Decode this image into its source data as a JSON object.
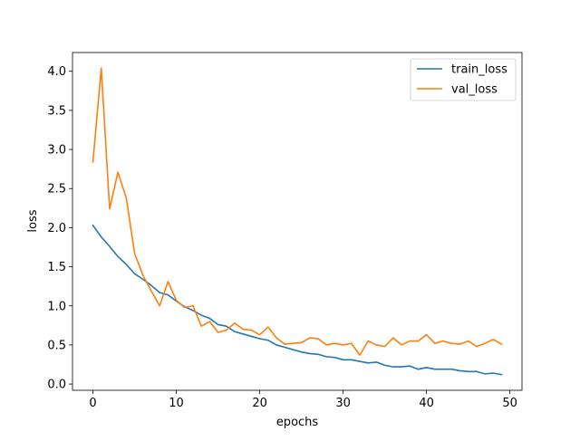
{
  "chart_data": {
    "type": "line",
    "title": "",
    "xlabel": "epochs",
    "ylabel": "loss",
    "xlim": [
      -2.45,
      51.45
    ],
    "ylim": [
      -0.08,
      4.24
    ],
    "xticks": [
      0,
      10,
      20,
      30,
      40,
      50
    ],
    "yticks": [
      0.0,
      0.5,
      1.0,
      1.5,
      2.0,
      2.5,
      3.0,
      3.5,
      4.0
    ],
    "xtick_labels": [
      "0",
      "10",
      "20",
      "30",
      "40",
      "50"
    ],
    "ytick_labels": [
      "0.0",
      "0.5",
      "1.0",
      "1.5",
      "2.0",
      "2.5",
      "3.0",
      "3.5",
      "4.0"
    ],
    "grid": false,
    "legend_position": "top-right",
    "x": [
      0,
      1,
      2,
      3,
      4,
      5,
      6,
      7,
      8,
      9,
      10,
      11,
      12,
      13,
      14,
      15,
      16,
      17,
      18,
      19,
      20,
      21,
      22,
      23,
      24,
      25,
      26,
      27,
      28,
      29,
      30,
      31,
      32,
      33,
      34,
      35,
      36,
      37,
      38,
      39,
      40,
      41,
      42,
      43,
      44,
      45,
      46,
      47,
      48,
      49
    ],
    "series": [
      {
        "name": "train_loss",
        "color": "#1f77b4",
        "values": [
          2.03,
          1.88,
          1.76,
          1.63,
          1.53,
          1.41,
          1.34,
          1.26,
          1.17,
          1.14,
          1.06,
          0.99,
          0.94,
          0.88,
          0.84,
          0.76,
          0.74,
          0.67,
          0.64,
          0.61,
          0.58,
          0.56,
          0.5,
          0.47,
          0.44,
          0.41,
          0.39,
          0.38,
          0.35,
          0.34,
          0.31,
          0.31,
          0.29,
          0.27,
          0.28,
          0.24,
          0.22,
          0.22,
          0.23,
          0.19,
          0.21,
          0.19,
          0.19,
          0.19,
          0.17,
          0.16,
          0.16,
          0.13,
          0.14,
          0.12
        ]
      },
      {
        "name": "val_loss",
        "color": "#ff7f0e",
        "values": [
          2.84,
          4.04,
          2.24,
          2.71,
          2.38,
          1.67,
          1.39,
          1.19,
          1.0,
          1.31,
          1.07,
          0.98,
          1.0,
          0.74,
          0.8,
          0.66,
          0.69,
          0.78,
          0.7,
          0.69,
          0.63,
          0.73,
          0.59,
          0.51,
          0.52,
          0.53,
          0.59,
          0.58,
          0.5,
          0.52,
          0.5,
          0.52,
          0.37,
          0.55,
          0.5,
          0.48,
          0.59,
          0.5,
          0.55,
          0.55,
          0.63,
          0.52,
          0.55,
          0.52,
          0.51,
          0.55,
          0.48,
          0.52,
          0.57,
          0.51
        ]
      }
    ]
  }
}
